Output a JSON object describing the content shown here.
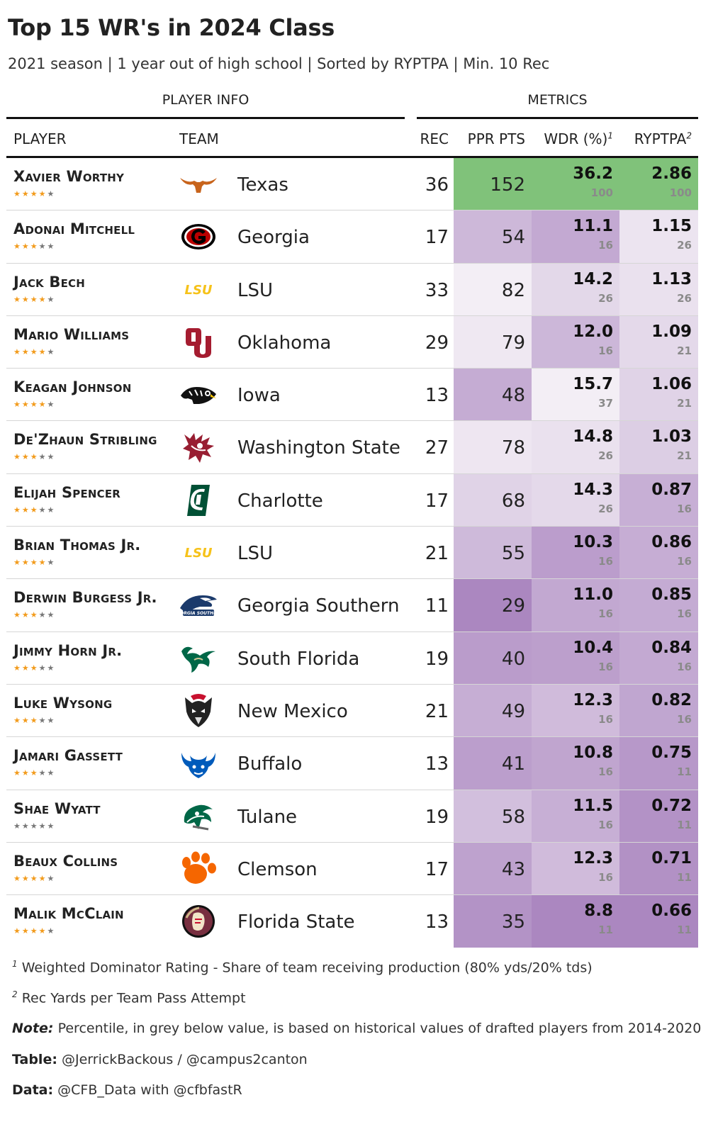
{
  "title": "Top 15 WR's in 2024 Class",
  "subtitle": "2021 season | 1 year out of high school | Sorted by RYPTPA | Min. 10 Rec",
  "groups": {
    "player_info": "PLAYER INFO",
    "metrics": "METRICS"
  },
  "columns": {
    "player": "PLAYER",
    "team": "TEAM",
    "rec": "REC",
    "ppr": "PPR PTS",
    "wdr": "WDR (%)",
    "wdr_sup": "1",
    "ryptpa": "RYPTPA",
    "ryptpa_sup": "2"
  },
  "footnotes": {
    "f1_sup": "1",
    "f1": "Weighted Dominator Rating - Share of team receiving production (80% yds/20% tds)",
    "f2_sup": "2",
    "f2": "Rec Yards per Team Pass Attempt",
    "note_label": "Note:",
    "note": "Percentile, in grey below value, is based on historical values of drafted players from 2014-2020",
    "table_label": "Table:",
    "table": "@JerrickBackous / @campus2canton",
    "data_label": "Data:",
    "data": "@CFB_Data with @cfbfastR"
  },
  "colors": {
    "top": "#80c27a",
    "purple_light": "#f3eef5",
    "purple_dark": "#ab87c0",
    "star": "#f29b1c",
    "star_off": "#777777",
    "pct_grey": "#8a8a8a"
  },
  "chart_data": {
    "type": "table",
    "columns": [
      "PLAYER",
      "TEAM",
      "REC",
      "PPR PTS",
      "WDR (%)",
      "RYPTPA"
    ],
    "rows": [
      {
        "player": "Xavier Worthy",
        "stars": 4,
        "team": "Texas",
        "logo": "longhorn-icon",
        "rec": 36,
        "ppr": 152,
        "wdr": "36.2",
        "wdr_pct": "100",
        "ryptpa": "2.86",
        "ryptpa_pct": "100"
      },
      {
        "player": "Adonai Mitchell",
        "stars": 3,
        "team": "Georgia",
        "logo": "georgia-g-icon",
        "rec": 17,
        "ppr": 54,
        "wdr": "11.1",
        "wdr_pct": "16",
        "ryptpa": "1.15",
        "ryptpa_pct": "26"
      },
      {
        "player": "Jack Bech",
        "stars": 4,
        "team": "LSU",
        "logo": "lsu-wordmark-icon",
        "rec": 33,
        "ppr": 82,
        "wdr": "14.2",
        "wdr_pct": "26",
        "ryptpa": "1.13",
        "ryptpa_pct": "26"
      },
      {
        "player": "Mario Williams",
        "stars": 4,
        "team": "Oklahoma",
        "logo": "ou-icon",
        "rec": 29,
        "ppr": 79,
        "wdr": "12.0",
        "wdr_pct": "16",
        "ryptpa": "1.09",
        "ryptpa_pct": "21"
      },
      {
        "player": "Keagan Johnson",
        "stars": 4,
        "team": "Iowa",
        "logo": "hawkeye-icon",
        "rec": 13,
        "ppr": 48,
        "wdr": "15.7",
        "wdr_pct": "37",
        "ryptpa": "1.06",
        "ryptpa_pct": "21"
      },
      {
        "player": "De'Zhaun Stribling",
        "stars": 3,
        "team": "Washington State",
        "logo": "cougar-icon",
        "rec": 27,
        "ppr": 78,
        "wdr": "14.8",
        "wdr_pct": "26",
        "ryptpa": "1.03",
        "ryptpa_pct": "21"
      },
      {
        "player": "Elijah Spencer",
        "stars": 3,
        "team": "Charlotte",
        "logo": "charlotte-c-icon",
        "rec": 17,
        "ppr": 68,
        "wdr": "14.3",
        "wdr_pct": "26",
        "ryptpa": "0.87",
        "ryptpa_pct": "16"
      },
      {
        "player": "Brian Thomas Jr.",
        "stars": 4,
        "team": "LSU",
        "logo": "lsu-wordmark-icon",
        "rec": 21,
        "ppr": 55,
        "wdr": "10.3",
        "wdr_pct": "16",
        "ryptpa": "0.86",
        "ryptpa_pct": "16"
      },
      {
        "player": "Derwin Burgess Jr.",
        "stars": 3,
        "team": "Georgia Southern",
        "logo": "eagle-icon",
        "rec": 11,
        "ppr": 29,
        "wdr": "11.0",
        "wdr_pct": "16",
        "ryptpa": "0.85",
        "ryptpa_pct": "16"
      },
      {
        "player": "Jimmy Horn Jr.",
        "stars": 3,
        "team": "South Florida",
        "logo": "usf-bull-icon",
        "rec": 19,
        "ppr": 40,
        "wdr": "10.4",
        "wdr_pct": "16",
        "ryptpa": "0.84",
        "ryptpa_pct": "16"
      },
      {
        "player": "Luke Wysong",
        "stars": 3,
        "team": "New Mexico",
        "logo": "lobo-icon",
        "rec": 21,
        "ppr": 49,
        "wdr": "12.3",
        "wdr_pct": "16",
        "ryptpa": "0.82",
        "ryptpa_pct": "16"
      },
      {
        "player": "Jamari Gassett",
        "stars": 3,
        "team": "Buffalo",
        "logo": "buffalo-bull-icon",
        "rec": 13,
        "ppr": 41,
        "wdr": "10.8",
        "wdr_pct": "16",
        "ryptpa": "0.75",
        "ryptpa_pct": "11"
      },
      {
        "player": "Shae Wyatt",
        "stars": 0,
        "team": "Tulane",
        "logo": "green-wave-icon",
        "rec": 19,
        "ppr": 58,
        "wdr": "11.5",
        "wdr_pct": "16",
        "ryptpa": "0.72",
        "ryptpa_pct": "11"
      },
      {
        "player": "Beaux Collins",
        "stars": 4,
        "team": "Clemson",
        "logo": "tiger-paw-icon",
        "rec": 17,
        "ppr": 43,
        "wdr": "12.3",
        "wdr_pct": "16",
        "ryptpa": "0.71",
        "ryptpa_pct": "11"
      },
      {
        "player": "Malik McClain",
        "stars": 4,
        "team": "Florida State",
        "logo": "seminole-icon",
        "rec": 13,
        "ppr": 35,
        "wdr": "8.8",
        "wdr_pct": "11",
        "ryptpa": "0.66",
        "ryptpa_pct": "11"
      }
    ]
  }
}
